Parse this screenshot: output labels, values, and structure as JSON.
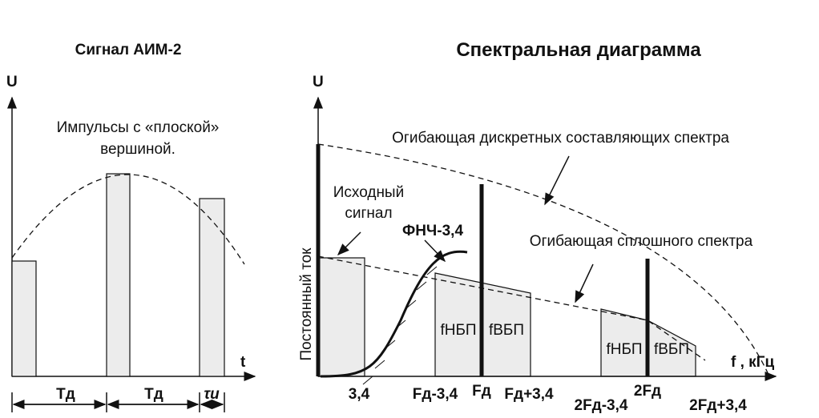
{
  "left": {
    "title": "Сигнал АИМ-2",
    "y_axis": "U",
    "x_axis": "t",
    "annotation": [
      "Импульсы с «плоской»",
      "вершиной."
    ],
    "intervals": [
      "Tд",
      "Tд",
      "τи"
    ]
  },
  "right": {
    "title": "Спектральная диаграмма",
    "y_axis": "U",
    "x_axis": "f , кГц",
    "discrete_envelope": "Огибающая дискретных составляющих спектра",
    "source_signal": [
      "Исходный",
      "сигнал"
    ],
    "filter": "ФНЧ-3,4",
    "continuous_envelope": "Огибающая сплошного спектра",
    "dc": "Постоянный ток",
    "sidebands": [
      "fНБП",
      "fВБП",
      "fНБП",
      "fВБП"
    ],
    "frequencies": [
      "3,4",
      "Fд-3,4",
      "Fд",
      "Fд+3,4",
      "2Fд-3,4",
      "2Fд",
      "2Fд+3,4"
    ]
  }
}
